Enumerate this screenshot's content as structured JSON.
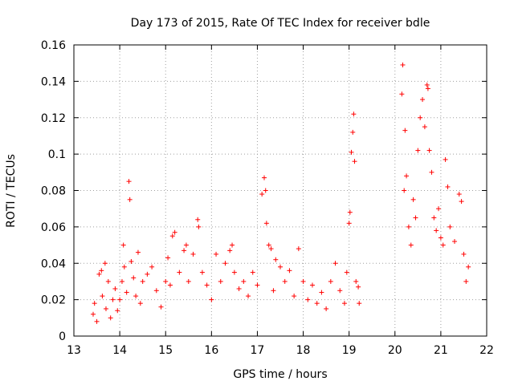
{
  "chart_data": {
    "type": "scatter",
    "title": "Day 173 of 2015, Rate Of TEC Index for receiver bdle",
    "xlabel": "GPS time / hours",
    "ylabel": "ROTI / TECUs",
    "xlim": [
      13,
      22
    ],
    "ylim": [
      0,
      0.16
    ],
    "x_ticks": [
      13,
      14,
      15,
      16,
      17,
      18,
      19,
      20,
      21,
      22
    ],
    "y_ticks": [
      0,
      0.02,
      0.04,
      0.06,
      0.08,
      0.1,
      0.12,
      0.14,
      0.16
    ],
    "x_tick_labels": [
      "13",
      "14",
      "15",
      "16",
      "17",
      "18",
      "19",
      "20",
      "21",
      "22"
    ],
    "y_tick_labels": [
      "0",
      "0.02",
      "0.04",
      "0.06",
      "0.08",
      "0.1",
      "0.12",
      "0.14",
      "0.16"
    ],
    "grid": true,
    "marker": "+",
    "color": "#ff0000",
    "series": [
      {
        "name": "ROTI",
        "points": [
          [
            13.42,
            0.012
          ],
          [
            13.45,
            0.018
          ],
          [
            13.5,
            0.008
          ],
          [
            13.55,
            0.034
          ],
          [
            13.6,
            0.036
          ],
          [
            13.62,
            0.022
          ],
          [
            13.68,
            0.04
          ],
          [
            13.7,
            0.015
          ],
          [
            13.75,
            0.03
          ],
          [
            13.8,
            0.01
          ],
          [
            13.85,
            0.02
          ],
          [
            13.9,
            0.026
          ],
          [
            13.95,
            0.014
          ],
          [
            14.0,
            0.02
          ],
          [
            14.05,
            0.03
          ],
          [
            14.08,
            0.05
          ],
          [
            14.1,
            0.038
          ],
          [
            14.15,
            0.024
          ],
          [
            14.2,
            0.085
          ],
          [
            14.22,
            0.075
          ],
          [
            14.25,
            0.041
          ],
          [
            14.3,
            0.032
          ],
          [
            14.35,
            0.022
          ],
          [
            14.4,
            0.046
          ],
          [
            14.45,
            0.018
          ],
          [
            14.5,
            0.03
          ],
          [
            14.6,
            0.034
          ],
          [
            14.7,
            0.038
          ],
          [
            14.8,
            0.025
          ],
          [
            14.9,
            0.016
          ],
          [
            15.0,
            0.03
          ],
          [
            15.05,
            0.043
          ],
          [
            15.1,
            0.028
          ],
          [
            15.15,
            0.055
          ],
          [
            15.2,
            0.057
          ],
          [
            15.3,
            0.035
          ],
          [
            15.4,
            0.047
          ],
          [
            15.45,
            0.05
          ],
          [
            15.5,
            0.03
          ],
          [
            15.6,
            0.045
          ],
          [
            15.7,
            0.064
          ],
          [
            15.72,
            0.06
          ],
          [
            15.8,
            0.035
          ],
          [
            15.9,
            0.028
          ],
          [
            16.0,
            0.02
          ],
          [
            16.1,
            0.045
          ],
          [
            16.2,
            0.03
          ],
          [
            16.3,
            0.04
          ],
          [
            16.4,
            0.047
          ],
          [
            16.45,
            0.05
          ],
          [
            16.5,
            0.035
          ],
          [
            16.6,
            0.026
          ],
          [
            16.7,
            0.03
          ],
          [
            16.8,
            0.022
          ],
          [
            16.9,
            0.035
          ],
          [
            17.0,
            0.028
          ],
          [
            17.1,
            0.078
          ],
          [
            17.15,
            0.087
          ],
          [
            17.18,
            0.08
          ],
          [
            17.2,
            0.062
          ],
          [
            17.25,
            0.05
          ],
          [
            17.3,
            0.048
          ],
          [
            17.35,
            0.025
          ],
          [
            17.4,
            0.042
          ],
          [
            17.5,
            0.038
          ],
          [
            17.6,
            0.03
          ],
          [
            17.7,
            0.036
          ],
          [
            17.8,
            0.022
          ],
          [
            17.9,
            0.048
          ],
          [
            18.0,
            0.03
          ],
          [
            18.1,
            0.02
          ],
          [
            18.2,
            0.028
          ],
          [
            18.3,
            0.018
          ],
          [
            18.4,
            0.024
          ],
          [
            18.5,
            0.015
          ],
          [
            18.6,
            0.03
          ],
          [
            18.7,
            0.04
          ],
          [
            18.8,
            0.025
          ],
          [
            18.9,
            0.018
          ],
          [
            18.95,
            0.035
          ],
          [
            19.0,
            0.062
          ],
          [
            19.02,
            0.068
          ],
          [
            19.05,
            0.101
          ],
          [
            19.08,
            0.112
          ],
          [
            19.1,
            0.122
          ],
          [
            19.12,
            0.096
          ],
          [
            19.15,
            0.03
          ],
          [
            19.2,
            0.027
          ],
          [
            19.22,
            0.018
          ],
          [
            20.15,
            0.133
          ],
          [
            20.17,
            0.149
          ],
          [
            20.2,
            0.08
          ],
          [
            20.22,
            0.113
          ],
          [
            20.25,
            0.088
          ],
          [
            20.3,
            0.06
          ],
          [
            20.35,
            0.05
          ],
          [
            20.4,
            0.075
          ],
          [
            20.45,
            0.065
          ],
          [
            20.5,
            0.102
          ],
          [
            20.55,
            0.12
          ],
          [
            20.6,
            0.13
          ],
          [
            20.65,
            0.115
          ],
          [
            20.7,
            0.138
          ],
          [
            20.72,
            0.136
          ],
          [
            20.75,
            0.102
          ],
          [
            20.8,
            0.09
          ],
          [
            20.85,
            0.065
          ],
          [
            20.9,
            0.058
          ],
          [
            20.95,
            0.07
          ],
          [
            21.0,
            0.054
          ],
          [
            21.05,
            0.05
          ],
          [
            21.1,
            0.097
          ],
          [
            21.15,
            0.082
          ],
          [
            21.2,
            0.06
          ],
          [
            21.3,
            0.052
          ],
          [
            21.4,
            0.078
          ],
          [
            21.45,
            0.074
          ],
          [
            21.5,
            0.045
          ],
          [
            21.55,
            0.03
          ],
          [
            21.6,
            0.038
          ]
        ]
      }
    ]
  }
}
